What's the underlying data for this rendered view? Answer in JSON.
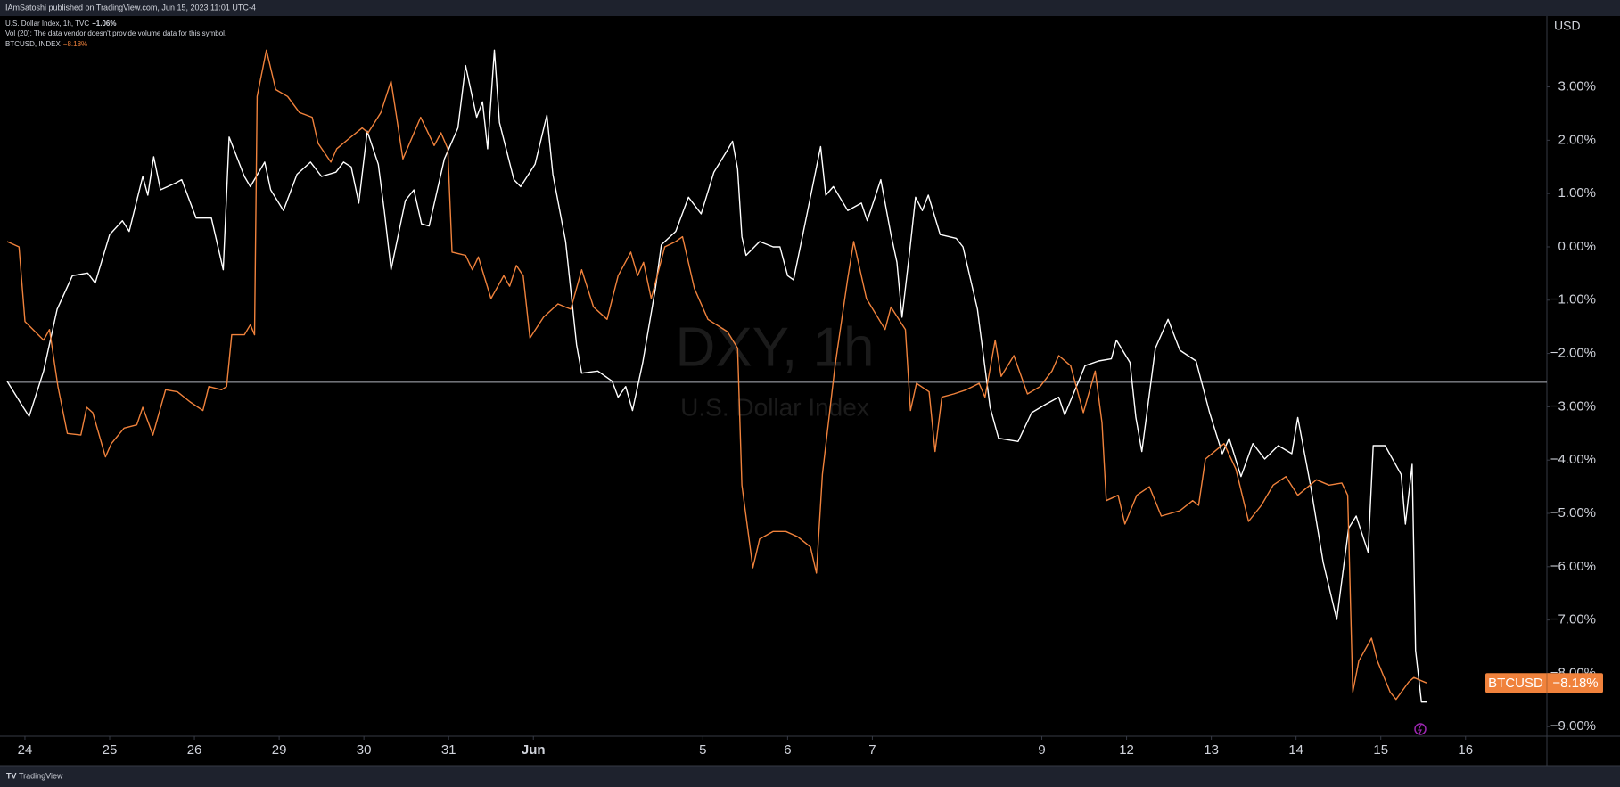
{
  "header": {
    "published": "IAmSatoshi published on TradingView.com, Jun 15, 2023 11:01 UTC-4"
  },
  "footer": {
    "brand": "TradingView"
  },
  "chart_data": {
    "type": "line",
    "watermark": {
      "symbol": "DXY, 1h",
      "description": "U.S. Dollar Index"
    },
    "notice": "Vol (20): The data vendor doesn't provide volume data for this symbol.",
    "y_unit": "USD",
    "grid": false,
    "xlim": [
      -0.21,
      17.96
    ],
    "ylim": [
      -9.18,
      4.33
    ],
    "xticks": [
      {
        "value": 0,
        "label": "24"
      },
      {
        "value": 1,
        "label": "25"
      },
      {
        "value": 2,
        "label": "26"
      },
      {
        "value": 3,
        "label": "29"
      },
      {
        "value": 4,
        "label": "30"
      },
      {
        "value": 5,
        "label": "31"
      },
      {
        "value": 6,
        "label": "Jun"
      },
      {
        "value": 8,
        "label": "5"
      },
      {
        "value": 9,
        "label": "6"
      },
      {
        "value": 10,
        "label": "7"
      },
      {
        "value": 12,
        "label": "9"
      },
      {
        "value": 13,
        "label": "12"
      },
      {
        "value": 14,
        "label": "13"
      },
      {
        "value": 15,
        "label": "14"
      },
      {
        "value": 16,
        "label": "15"
      },
      {
        "value": 17,
        "label": "16"
      }
    ],
    "yticks": [
      {
        "value": 3,
        "label": "3.00%"
      },
      {
        "value": 2,
        "label": "2.00%"
      },
      {
        "value": 1,
        "label": "1.00%"
      },
      {
        "value": 0,
        "label": "0.00%"
      },
      {
        "value": -1,
        "label": "−1.00%"
      },
      {
        "value": -2,
        "label": "−2.00%"
      },
      {
        "value": -3,
        "label": "−3.00%"
      },
      {
        "value": -4,
        "label": "−4.00%"
      },
      {
        "value": -5,
        "label": "−5.00%"
      },
      {
        "value": -6,
        "label": "−6.00%"
      },
      {
        "value": -7,
        "label": "−7.00%"
      },
      {
        "value": -8,
        "label": "−8.00%"
      },
      {
        "value": -9,
        "label": "−9.00%"
      }
    ],
    "reference_line": -2.54,
    "price_badge": {
      "label": "BTCUSD",
      "value_label": "−8.18%"
    },
    "series": [
      {
        "name": "U.S. Dollar Index, 1h, TVC",
        "change_label": "−1.06%",
        "color": "#ffffff",
        "x": [
          -0.21,
          -0.02,
          0.05,
          0.22,
          0.38,
          0.56,
          0.74,
          0.83,
          1.0,
          1.15,
          1.23,
          1.39,
          1.45,
          1.52,
          1.6,
          1.78,
          1.85,
          2.02,
          2.2,
          2.34,
          2.41,
          2.59,
          2.66,
          2.83,
          2.9,
          3.05,
          3.21,
          3.37,
          3.5,
          3.67,
          3.76,
          3.85,
          3.94,
          4.04,
          4.17,
          4.24,
          4.32,
          4.49,
          4.59,
          4.68,
          4.77,
          4.95,
          5.11,
          5.2,
          5.33,
          5.4,
          5.46,
          5.54,
          5.6,
          5.77,
          5.85,
          6.02,
          6.16,
          6.23,
          6.38,
          6.51,
          6.57,
          6.76,
          6.93,
          7.0,
          7.09,
          7.17,
          7.29,
          7.44,
          7.51,
          7.68,
          7.83,
          7.98,
          8.13,
          8.3,
          8.35,
          8.41,
          8.46,
          8.51,
          8.67,
          8.83,
          8.91,
          9.0,
          9.07,
          9.23,
          9.39,
          9.45,
          9.54,
          9.71,
          9.87,
          9.94,
          10.1,
          10.22,
          10.29,
          10.35,
          10.44,
          10.51,
          10.59,
          10.66,
          10.8,
          10.99,
          11.07,
          11.24,
          11.39,
          11.49,
          11.72,
          11.88,
          12.05,
          12.2,
          12.27,
          12.51,
          12.67,
          12.82,
          12.88,
          13.04,
          13.11,
          13.18,
          13.34,
          13.49,
          13.63,
          13.82,
          13.98,
          14.13,
          14.21,
          14.35,
          14.49,
          14.63,
          14.79,
          14.95,
          15.02,
          15.17,
          15.32,
          15.48,
          15.62,
          15.71,
          15.85,
          15.91,
          16.05,
          16.24,
          16.29,
          16.37,
          16.41,
          16.48,
          16.54
        ],
        "values": [
          -2.52,
          -3.01,
          -3.18,
          -2.33,
          -1.17,
          -0.54,
          -0.49,
          -0.68,
          0.23,
          0.49,
          0.29,
          1.32,
          0.97,
          1.69,
          1.07,
          1.2,
          1.26,
          0.54,
          0.54,
          -0.43,
          2.06,
          1.32,
          1.13,
          1.59,
          1.07,
          0.68,
          1.36,
          1.59,
          1.32,
          1.4,
          1.59,
          1.5,
          0.82,
          2.17,
          1.55,
          0.68,
          -0.43,
          0.87,
          1.07,
          0.43,
          0.39,
          1.65,
          2.23,
          3.4,
          2.43,
          2.72,
          1.84,
          3.69,
          2.33,
          1.26,
          1.13,
          1.55,
          2.47,
          1.36,
          0.1,
          -1.84,
          -2.37,
          -2.33,
          -2.52,
          -2.82,
          -2.62,
          -3.07,
          -2.17,
          -0.78,
          0.04,
          0.29,
          0.93,
          0.62,
          1.4,
          1.84,
          1.98,
          1.46,
          0.19,
          -0.16,
          0.1,
          0.0,
          0.0,
          -0.54,
          -0.62,
          0.62,
          1.88,
          0.97,
          1.13,
          0.68,
          0.82,
          0.49,
          1.26,
          0.23,
          -0.29,
          -1.32,
          -0.1,
          0.93,
          0.68,
          0.97,
          0.23,
          0.16,
          0.0,
          -1.17,
          -3.01,
          -3.59,
          -3.65,
          -3.11,
          -2.95,
          -2.82,
          -3.15,
          -2.23,
          -2.14,
          -2.1,
          -1.75,
          -2.17,
          -3.2,
          -3.84,
          -1.9,
          -1.36,
          -1.94,
          -2.14,
          -3.11,
          -3.88,
          -3.59,
          -4.31,
          -3.69,
          -3.98,
          -3.73,
          -3.88,
          -3.2,
          -4.47,
          -5.92,
          -6.99,
          -5.28,
          -5.05,
          -5.73,
          -3.73,
          -3.73,
          -4.27,
          -5.2,
          -4.08,
          -7.57,
          -8.54,
          -8.54
        ]
      },
      {
        "name": "BTCUSD, INDEX",
        "change_label": "−8.18%",
        "color": "#f0823c",
        "x": [
          -0.21,
          -0.07,
          0.0,
          0.22,
          0.29,
          0.39,
          0.5,
          0.66,
          0.73,
          0.8,
          0.95,
          1.02,
          1.17,
          1.32,
          1.39,
          1.51,
          1.66,
          1.8,
          1.95,
          2.1,
          2.17,
          2.32,
          2.38,
          2.44,
          2.59,
          2.66,
          2.71,
          2.74,
          2.85,
          2.96,
          3.1,
          3.24,
          3.39,
          3.46,
          3.61,
          3.68,
          3.83,
          3.98,
          4.05,
          4.2,
          4.32,
          4.38,
          4.46,
          4.67,
          4.83,
          4.91,
          4.99,
          5.04,
          5.2,
          5.28,
          5.35,
          5.5,
          5.65,
          5.72,
          5.8,
          5.88,
          5.96,
          6.12,
          6.29,
          6.44,
          6.57,
          6.71,
          6.87,
          7.0,
          7.15,
          7.23,
          7.3,
          7.39,
          7.55,
          7.68,
          7.76,
          7.9,
          8.06,
          8.29,
          8.41,
          8.46,
          8.59,
          8.67,
          8.83,
          8.98,
          9.12,
          9.27,
          9.34,
          9.41,
          9.56,
          9.71,
          9.78,
          9.93,
          10.15,
          10.22,
          10.39,
          10.45,
          10.52,
          10.67,
          10.74,
          10.82,
          10.96,
          11.11,
          11.26,
          11.33,
          11.45,
          11.52,
          11.67,
          11.83,
          11.98,
          12.12,
          12.2,
          12.34,
          12.49,
          12.63,
          12.71,
          12.76,
          12.9,
          12.98,
          13.12,
          13.27,
          13.41,
          13.63,
          13.78,
          13.85,
          13.93,
          14.15,
          14.29,
          14.44,
          14.59,
          14.73,
          14.88,
          15.02,
          15.24,
          15.39,
          15.54,
          15.61,
          15.67,
          15.74,
          15.89,
          15.96,
          16.11,
          16.18,
          16.33,
          16.39,
          16.54
        ],
        "values": [
          0.1,
          0.0,
          -1.4,
          -1.75,
          -1.55,
          -2.62,
          -3.5,
          -3.53,
          -3.01,
          -3.11,
          -3.94,
          -3.69,
          -3.4,
          -3.34,
          -3.01,
          -3.53,
          -2.68,
          -2.72,
          -2.91,
          -3.07,
          -2.62,
          -2.68,
          -2.62,
          -1.65,
          -1.65,
          -1.46,
          -1.65,
          2.82,
          3.69,
          2.95,
          2.82,
          2.52,
          2.43,
          1.94,
          1.59,
          1.84,
          2.04,
          2.23,
          2.14,
          2.52,
          3.11,
          2.49,
          1.65,
          2.43,
          1.9,
          2.14,
          1.84,
          -0.1,
          -0.16,
          -0.43,
          -0.19,
          -0.97,
          -0.54,
          -0.74,
          -0.35,
          -0.54,
          -1.71,
          -1.32,
          -1.07,
          -1.17,
          -0.43,
          -1.13,
          -1.36,
          -0.54,
          -0.1,
          -0.54,
          -0.29,
          -0.97,
          0.0,
          0.1,
          0.19,
          -0.78,
          -1.36,
          -1.59,
          -1.9,
          -4.47,
          -6.02,
          -5.48,
          -5.34,
          -5.34,
          -5.44,
          -5.63,
          -6.12,
          -4.27,
          -2.23,
          -0.58,
          0.1,
          -0.97,
          -1.55,
          -1.13,
          -1.55,
          -3.07,
          -2.56,
          -2.72,
          -3.84,
          -2.82,
          -2.76,
          -2.68,
          -2.56,
          -2.82,
          -1.75,
          -2.43,
          -2.04,
          -2.76,
          -2.62,
          -2.33,
          -2.04,
          -2.23,
          -3.11,
          -2.33,
          -3.3,
          -4.76,
          -4.66,
          -5.2,
          -4.66,
          -4.5,
          -5.05,
          -4.95,
          -4.76,
          -4.85,
          -3.98,
          -3.69,
          -4.17,
          -5.15,
          -4.85,
          -4.47,
          -4.31,
          -4.66,
          -4.37,
          -4.47,
          -4.43,
          -4.66,
          -8.35,
          -7.77,
          -7.34,
          -7.77,
          -8.35,
          -8.49,
          -8.16,
          -8.08,
          -8.18
        ]
      }
    ]
  }
}
